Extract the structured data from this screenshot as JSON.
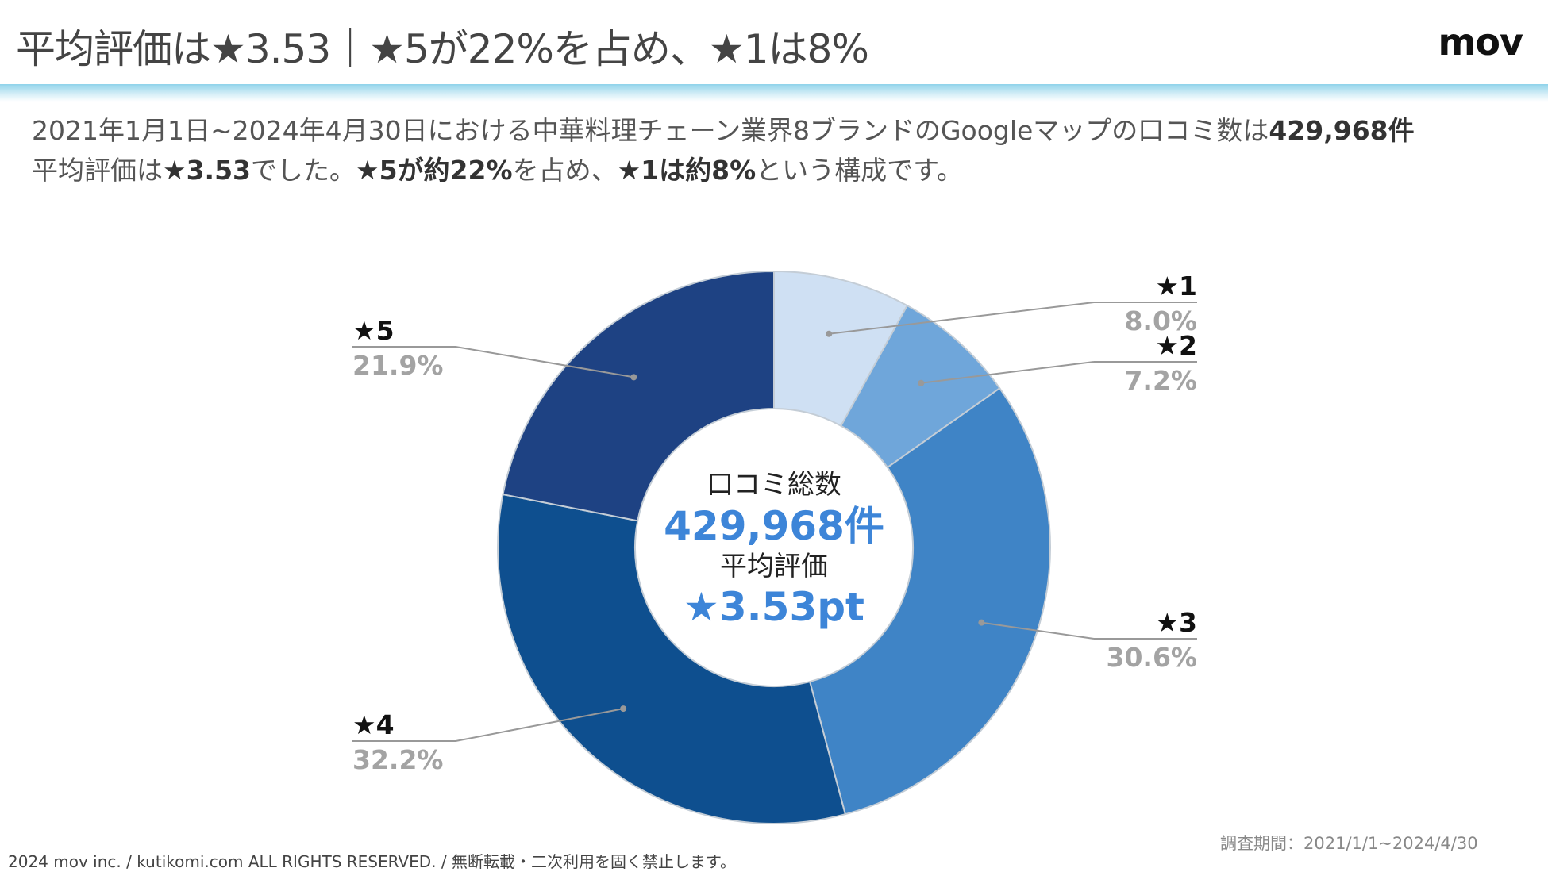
{
  "header": {
    "title": "平均評価は★3.53｜★5が22%を占め、★1は8%",
    "logo": "mov"
  },
  "description": {
    "line1_prefix": "2021年1月1日~2024年4月30日における中華料理チェーン業界8ブランドのGoogleマップの口コミ数は",
    "line1_total": "429,968件",
    "line2_a": "平均評価は",
    "line2_avg": "★3.53",
    "line2_b": "でした。",
    "line2_star5": "★5が約22%",
    "line2_c": "を占め、",
    "line2_star1": "★1は約8%",
    "line2_d": "という構成です。"
  },
  "chart_data": {
    "type": "pie",
    "subtype": "donut",
    "categories": [
      "★1",
      "★2",
      "★3",
      "★4",
      "★5"
    ],
    "values": [
      8.0,
      7.2,
      30.6,
      32.2,
      21.9
    ],
    "value_labels": [
      "8.0%",
      "7.2%",
      "30.6%",
      "32.2%",
      "21.9%"
    ],
    "colors": [
      "#cfe0f3",
      "#6fa6da",
      "#3f84c6",
      "#0e4f8f",
      "#1e4283"
    ],
    "center": {
      "label1": "口コミ総数",
      "total": "429,968件",
      "label2": "平均評価",
      "average": "★3.53pt"
    },
    "center_value_color": "#3d85d8",
    "legend": "callout labels"
  },
  "footer": {
    "copyright": "2024 mov inc. / kutikomi.com ALL RIGHTS RESERVED. / 無断転載・二次利用を固く禁止します。",
    "period": "調査期間：2021/1/1~2024/4/30"
  }
}
